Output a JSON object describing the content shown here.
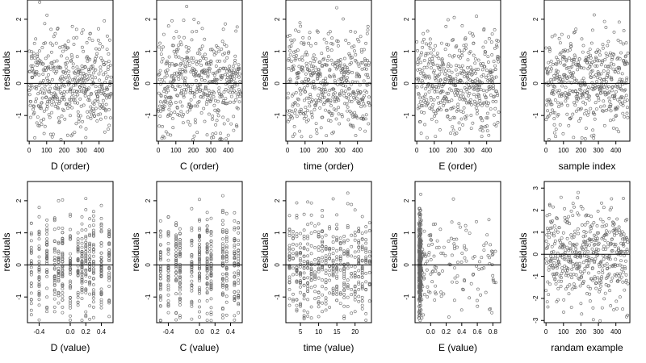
{
  "figure": {
    "ylabel": "residuals",
    "point_color": "#666666",
    "zero_line_color": "#000000"
  },
  "chart_data": [
    {
      "type": "scatter",
      "xlabel": "D (order)",
      "ylabel": "residuals",
      "xlim": [
        -10,
        480
      ],
      "ylim": [
        -1.8,
        2.6
      ],
      "xticks": [
        0,
        100,
        200,
        300,
        400
      ],
      "yticks": [
        -1,
        0,
        1,
        2
      ],
      "hline": 0,
      "n": 470,
      "x_pattern": "index",
      "seed": 11
    },
    {
      "type": "scatter",
      "xlabel": "C (order)",
      "ylabel": "residuals",
      "xlim": [
        -10,
        480
      ],
      "ylim": [
        -1.8,
        2.6
      ],
      "xticks": [
        0,
        100,
        200,
        300,
        400
      ],
      "yticks": [
        -1,
        0,
        1,
        2
      ],
      "hline": 0,
      "n": 470,
      "x_pattern": "index",
      "seed": 23
    },
    {
      "type": "scatter",
      "xlabel": "time (order)",
      "ylabel": "residuals",
      "xlim": [
        -10,
        480
      ],
      "ylim": [
        -1.8,
        2.6
      ],
      "xticks": [
        0,
        100,
        200,
        300,
        400
      ],
      "yticks": [
        -1,
        0,
        1,
        2
      ],
      "hline": 0,
      "n": 470,
      "x_pattern": "index",
      "seed": 37
    },
    {
      "type": "scatter",
      "xlabel": "E (order)",
      "ylabel": "residuals",
      "xlim": [
        -10,
        480
      ],
      "ylim": [
        -1.8,
        2.6
      ],
      "xticks": [
        0,
        100,
        200,
        300,
        400
      ],
      "yticks": [
        -1,
        0,
        1,
        2
      ],
      "hline": 0,
      "n": 470,
      "x_pattern": "index",
      "seed": 41
    },
    {
      "type": "scatter",
      "xlabel": "sample index",
      "ylabel": "residuals",
      "xlim": [
        -10,
        480
      ],
      "ylim": [
        -1.8,
        2.6
      ],
      "xticks": [
        0,
        100,
        200,
        300,
        400
      ],
      "yticks": [
        -1,
        0,
        1,
        2
      ],
      "hline": 0,
      "n": 470,
      "x_pattern": "index",
      "seed": 53
    },
    {
      "type": "scatter",
      "xlabel": "D (value)",
      "ylabel": "residuals",
      "xlim": [
        -0.55,
        0.55
      ],
      "ylim": [
        -1.8,
        2.6
      ],
      "xticks": [
        -0.4,
        0.0,
        0.2,
        0.4
      ],
      "xtick_labels": [
        "-0.4",
        "0.0",
        "0.2",
        "0.4"
      ],
      "yticks": [
        -1,
        0,
        1,
        2
      ],
      "hline": 0,
      "n": 470,
      "x_pattern": "discrete",
      "x_levels": [
        -0.5,
        -0.4,
        -0.3,
        -0.2,
        -0.15,
        -0.1,
        0.0,
        0.1,
        0.15,
        0.2,
        0.25,
        0.3,
        0.4,
        0.5
      ],
      "seed": 61
    },
    {
      "type": "scatter",
      "xlabel": "C (value)",
      "ylabel": "residuals",
      "xlim": [
        -0.55,
        0.55
      ],
      "ylim": [
        -1.8,
        2.6
      ],
      "xticks": [
        -0.4,
        0.0,
        0.2,
        0.4
      ],
      "xtick_labels": [
        "-0.4",
        "0.0",
        "0.2",
        "0.4"
      ],
      "yticks": [
        -1,
        0,
        1,
        2
      ],
      "hline": 0,
      "n": 470,
      "x_pattern": "discrete",
      "x_levels": [
        -0.5,
        -0.4,
        -0.3,
        -0.25,
        -0.1,
        0.0,
        0.1,
        0.15,
        0.3,
        0.35,
        0.45,
        0.5
      ],
      "seed": 71
    },
    {
      "type": "scatter",
      "xlabel": "time (value)",
      "ylabel": "residuals",
      "xlim": [
        1,
        24.5
      ],
      "ylim": [
        -1.8,
        2.6
      ],
      "xticks": [
        5,
        10,
        15,
        20
      ],
      "yticks": [
        -1,
        0,
        1,
        2
      ],
      "hline": 0,
      "n": 470,
      "x_pattern": "discrete",
      "x_levels": [
        2,
        3,
        4,
        5,
        6,
        7,
        8,
        9,
        10,
        11,
        12,
        13,
        14,
        15,
        16,
        17,
        18,
        19,
        20,
        21,
        22,
        23,
        24
      ],
      "seed": 83
    },
    {
      "type": "scatter",
      "xlabel": "E (value)",
      "ylabel": "residuals",
      "xlim": [
        -0.2,
        0.9
      ],
      "ylim": [
        -1.8,
        2.6
      ],
      "xticks": [
        0.0,
        0.2,
        0.4,
        0.6,
        0.8
      ],
      "xtick_labels": [
        "0.0",
        "0.2",
        "0.4",
        "0.6",
        "0.8"
      ],
      "yticks": [
        -1,
        0,
        1,
        2
      ],
      "hline": 0,
      "n": 470,
      "x_pattern": "skewed",
      "seed": 97
    },
    {
      "type": "scatter",
      "xlabel": "randam example",
      "ylabel": "residuals",
      "xlim": [
        -10,
        480
      ],
      "ylim": [
        -3.1,
        3.3
      ],
      "xticks": [
        0,
        100,
        200,
        300,
        400
      ],
      "yticks": [
        -3,
        -2,
        -1,
        0,
        1,
        2,
        3
      ],
      "hline": 0,
      "n": 470,
      "x_pattern": "index",
      "seed": 101
    }
  ]
}
